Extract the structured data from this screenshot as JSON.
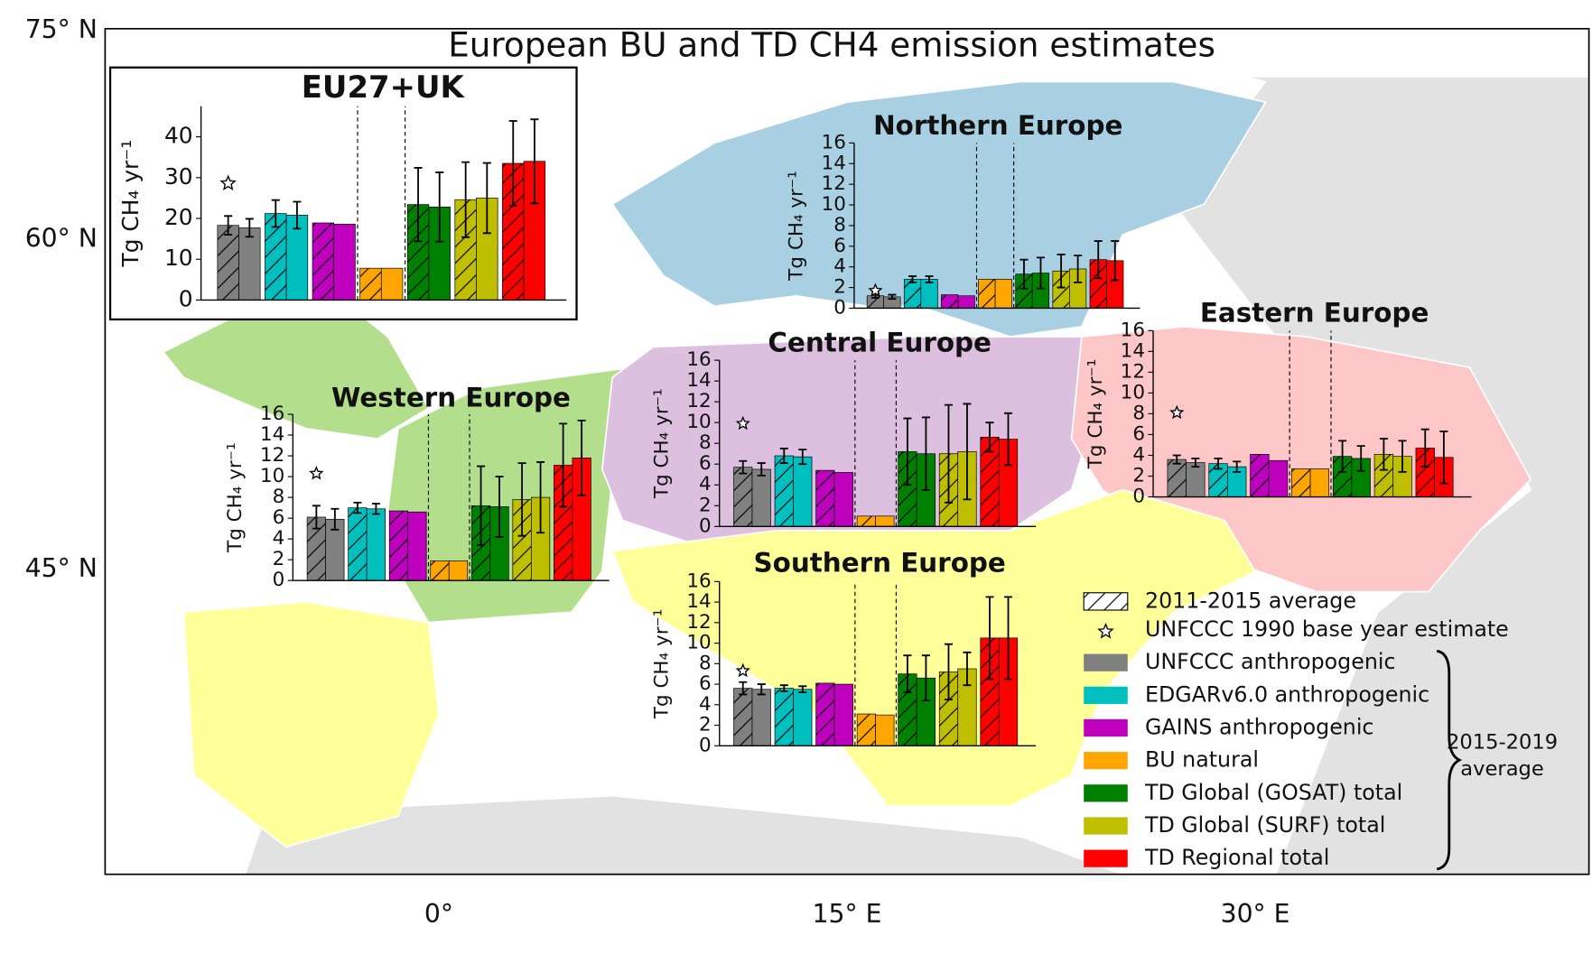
{
  "title": "European BU and TD CH4 emission estimates",
  "map": {
    "lat_ticks": [
      {
        "value": 75,
        "label": "75° N"
      },
      {
        "value": 60,
        "label": "60° N"
      },
      {
        "value": 45,
        "label": "45° N"
      }
    ],
    "lon_ticks": [
      {
        "value": 0,
        "label": "0°"
      },
      {
        "value": 15,
        "label": "15° E"
      },
      {
        "value": 30,
        "label": "30° E"
      }
    ]
  },
  "legend": {
    "hatch": "2011-2015 average",
    "star": "UNFCCC 1990 base year estimate",
    "series": [
      {
        "name": "UNFCCC anthropogenic",
        "color": "#808080"
      },
      {
        "name": "EDGARv6.0 anthropogenic",
        "color": "#00bfbf"
      },
      {
        "name": "GAINS anthropogenic",
        "color": "#bf00bf"
      },
      {
        "name": "BU natural",
        "color": "#ffa500"
      },
      {
        "name": "TD Global (GOSAT) total",
        "color": "#008000"
      },
      {
        "name": "TD Global (SURF) total",
        "color": "#bfbf00"
      },
      {
        "name": "TD Regional total",
        "color": "#ff0000"
      }
    ],
    "bracket": [
      "2015-2019",
      "average"
    ]
  },
  "chart_data": [
    {
      "type": "bar",
      "title": "EU27+UK",
      "ylabel": "Tg CH₄ yr⁻¹",
      "ylim": [
        0,
        47.5
      ],
      "yticks": [
        0,
        10,
        20,
        30,
        40
      ],
      "values": [
        [
          18.3,
          17.7
        ],
        [
          21.2,
          20.8
        ],
        [
          18.9,
          18.6
        ],
        [
          7.8,
          7.8
        ],
        [
          23.4,
          22.8
        ],
        [
          24.6,
          25.0
        ],
        [
          33.5,
          34.0
        ]
      ],
      "errors": [
        [
          2.3,
          2.2
        ],
        [
          3.3,
          3.3
        ],
        [
          null,
          null
        ],
        [
          null,
          null
        ],
        [
          9.0,
          8.5
        ],
        [
          9.2,
          8.6
        ],
        [
          10.4,
          10.3
        ]
      ],
      "base_year_estimate": 28.6
    },
    {
      "type": "bar",
      "title": "Northern Europe",
      "ylabel": "Tg CH₄ yr⁻¹",
      "ylim": [
        0,
        16
      ],
      "yticks": [
        0,
        2,
        4,
        6,
        8,
        10,
        12,
        14,
        16
      ],
      "values": [
        [
          1.2,
          1.1
        ],
        [
          2.8,
          2.8
        ],
        [
          1.3,
          1.2
        ],
        [
          2.8,
          2.8
        ],
        [
          3.3,
          3.4
        ],
        [
          3.6,
          3.8
        ],
        [
          4.7,
          4.6
        ]
      ],
      "errors": [
        [
          0.2,
          0.2
        ],
        [
          0.3,
          0.3
        ],
        [
          null,
          null
        ],
        [
          null,
          null
        ],
        [
          1.4,
          1.5
        ],
        [
          1.6,
          1.3
        ],
        [
          1.8,
          1.9
        ]
      ],
      "base_year_estimate": 1.7
    },
    {
      "type": "bar",
      "title": "Central Europe",
      "ylabel": "Tg CH₄ yr⁻¹",
      "ylim": [
        0,
        16
      ],
      "yticks": [
        0,
        2,
        4,
        6,
        8,
        10,
        12,
        14,
        16
      ],
      "values": [
        [
          5.7,
          5.5
        ],
        [
          6.8,
          6.7
        ],
        [
          5.4,
          5.2
        ],
        [
          1.0,
          1.0
        ],
        [
          7.2,
          7.0
        ],
        [
          7.0,
          7.2
        ],
        [
          8.6,
          8.4
        ]
      ],
      "errors": [
        [
          0.6,
          0.6
        ],
        [
          0.7,
          0.7
        ],
        [
          null,
          null
        ],
        [
          null,
          null
        ],
        [
          3.2,
          3.5
        ],
        [
          4.7,
          4.6
        ],
        [
          1.4,
          2.5
        ]
      ],
      "base_year_estimate": 9.9
    },
    {
      "type": "bar",
      "title": "Western Europe",
      "ylabel": "Tg CH₄ yr⁻¹",
      "ylim": [
        0,
        16
      ],
      "yticks": [
        0,
        2,
        4,
        6,
        8,
        10,
        12,
        14,
        16
      ],
      "values": [
        [
          6.1,
          5.9
        ],
        [
          7.0,
          6.9
        ],
        [
          6.7,
          6.6
        ],
        [
          1.9,
          1.9
        ],
        [
          7.2,
          7.1
        ],
        [
          7.8,
          8.0
        ],
        [
          11.1,
          11.8
        ]
      ],
      "errors": [
        [
          1.1,
          1.0
        ],
        [
          0.5,
          0.5
        ],
        [
          null,
          null
        ],
        [
          null,
          null
        ],
        [
          3.8,
          2.9
        ],
        [
          3.5,
          3.4
        ],
        [
          4.0,
          3.6
        ]
      ],
      "base_year_estimate": 10.3
    },
    {
      "type": "bar",
      "title": "Eastern Europe",
      "ylabel": "Tg CH₄ yr⁻¹",
      "ylim": [
        0,
        16
      ],
      "yticks": [
        0,
        2,
        4,
        6,
        8,
        10,
        12,
        14,
        16
      ],
      "values": [
        [
          3.6,
          3.3
        ],
        [
          3.2,
          2.9
        ],
        [
          4.1,
          3.5
        ],
        [
          2.7,
          2.7
        ],
        [
          3.9,
          3.7
        ],
        [
          4.1,
          3.9
        ],
        [
          4.7,
          3.8
        ]
      ],
      "errors": [
        [
          0.4,
          0.4
        ],
        [
          0.5,
          0.5
        ],
        [
          null,
          null
        ],
        [
          null,
          null
        ],
        [
          1.5,
          1.2
        ],
        [
          1.5,
          1.5
        ],
        [
          1.8,
          2.5
        ]
      ],
      "base_year_estimate": 8.1
    },
    {
      "type": "bar",
      "title": "Southern Europe",
      "ylabel": "Tg CH₄ yr⁻¹",
      "ylim": [
        0,
        16
      ],
      "yticks": [
        0,
        2,
        4,
        6,
        8,
        10,
        12,
        14,
        16
      ],
      "values": [
        [
          5.6,
          5.5
        ],
        [
          5.6,
          5.5
        ],
        [
          6.1,
          6.0
        ],
        [
          3.1,
          3.0
        ],
        [
          7.0,
          6.6
        ],
        [
          7.2,
          7.5
        ],
        [
          10.5,
          10.5
        ]
      ],
      "errors": [
        [
          0.6,
          0.5
        ],
        [
          0.3,
          0.3
        ],
        [
          null,
          null
        ],
        [
          null,
          null
        ],
        [
          1.8,
          2.2
        ],
        [
          2.7,
          1.6
        ],
        [
          4.0,
          4.0
        ]
      ],
      "base_year_estimate": 7.3
    }
  ]
}
